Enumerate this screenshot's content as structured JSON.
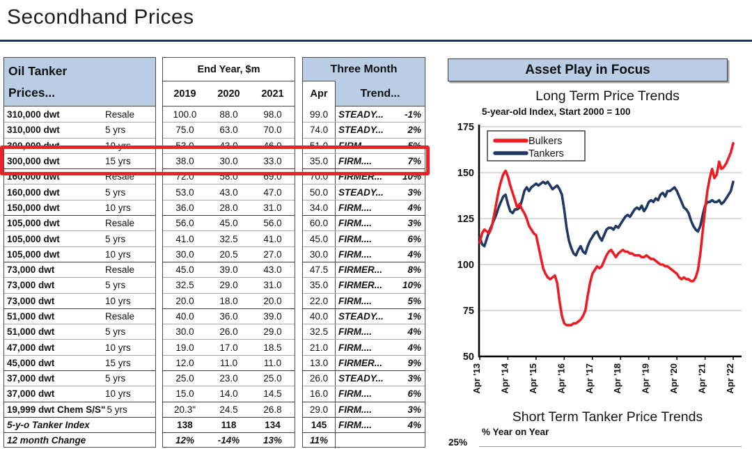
{
  "page": {
    "title": "Secondhand Prices"
  },
  "colors": {
    "header_blue": "#b9cde5",
    "rule_navy": "#17375e",
    "highlight_red": "#ee2128",
    "bulkers_red": "#ec1c24",
    "tankers_navy": "#1f3864"
  },
  "table": {
    "header": {
      "col1_line1": "Oil Tanker",
      "col1_line2": "Prices...",
      "years_title": "End Year, $m",
      "years": [
        "2019",
        "2020",
        "2021"
      ],
      "three_month": "Three Month",
      "apr": "Apr",
      "trend": "Trend..."
    },
    "rows": [
      {
        "label": "310,000 dwt",
        "age": "Resale",
        "y2019": "100.0",
        "y2020": "88.0",
        "y2021": "98.0",
        "apr": "99.0",
        "trend": "STEADY...",
        "pct": "-1%"
      },
      {
        "label": "310,000 dwt",
        "age": "5 yrs",
        "y2019": "75.0",
        "y2020": "63.0",
        "y2021": "70.0",
        "apr": "74.0",
        "trend": "STEADY...",
        "pct": "2%"
      },
      {
        "label": "300,000 dwt",
        "age": "10 yrs",
        "y2019": "53.0",
        "y2020": "43.0",
        "y2021": "46.0",
        "apr": "51.0",
        "trend": "FIRM....",
        "pct": "5%"
      },
      {
        "label": "300,000 dwt",
        "age": "15 yrs",
        "y2019": "38.0",
        "y2020": "30.0",
        "y2021": "33.0",
        "apr": "35.0",
        "trend": "FIRM....",
        "pct": "7%",
        "highlighted": true
      },
      {
        "label": "160,000 dwt",
        "age": "Resale",
        "y2019": "72.0",
        "y2020": "58.0",
        "y2021": "69.0",
        "apr": "70.0",
        "trend": "FIRMER...",
        "pct": "10%",
        "group_start": true
      },
      {
        "label": "160,000 dwt",
        "age": "5 yrs",
        "y2019": "53.0",
        "y2020": "43.0",
        "y2021": "47.0",
        "apr": "50.0",
        "trend": "STEADY...",
        "pct": "3%"
      },
      {
        "label": "150,000 dwt",
        "age": "10 yrs",
        "y2019": "36.0",
        "y2020": "28.0",
        "y2021": "31.0",
        "apr": "34.0",
        "trend": "FIRM....",
        "pct": "4%"
      },
      {
        "label": "105,000 dwt",
        "age": "Resale",
        "y2019": "56.0",
        "y2020": "45.0",
        "y2021": "56.0",
        "apr": "60.0",
        "trend": "FIRM....",
        "pct": "3%",
        "group_start": true
      },
      {
        "label": "105,000 dwt",
        "age": "5 yrs",
        "y2019": "41.0",
        "y2020": "32.5",
        "y2021": "41.0",
        "apr": "45.0",
        "trend": "FIRM....",
        "pct": "6%"
      },
      {
        "label": "105,000 dwt",
        "age": "10 yrs",
        "y2019": "30.0",
        "y2020": "20.5",
        "y2021": "27.0",
        "apr": "30.0",
        "trend": "FIRM....",
        "pct": "4%"
      },
      {
        "label": "73,000 dwt",
        "age": "Resale",
        "y2019": "45.0",
        "y2020": "39.0",
        "y2021": "43.0",
        "apr": "47.5",
        "trend": "FIRMER...",
        "pct": "8%",
        "group_start": true
      },
      {
        "label": "73,000 dwt",
        "age": "5 yrs",
        "y2019": "32.5",
        "y2020": "29.0",
        "y2021": "31.0",
        "apr": "35.0",
        "trend": "FIRMER...",
        "pct": "10%"
      },
      {
        "label": "73,000 dwt",
        "age": "10 yrs",
        "y2019": "20.0",
        "y2020": "18.0",
        "y2021": "20.0",
        "apr": "22.0",
        "trend": "FIRM....",
        "pct": "5%"
      },
      {
        "label": "51,000 dwt",
        "age": "Resale",
        "y2019": "40.0",
        "y2020": "36.0",
        "y2021": "39.0",
        "apr": "40.0",
        "trend": "STEADY...",
        "pct": "1%",
        "group_start": true
      },
      {
        "label": "51,000 dwt",
        "age": "5 yrs",
        "y2019": "30.0",
        "y2020": "26.0",
        "y2021": "29.0",
        "apr": "32.5",
        "trend": "FIRM....",
        "pct": "4%"
      },
      {
        "label": "47,000 dwt",
        "age": "10 yrs",
        "y2019": "19.0",
        "y2020": "17.0",
        "y2021": "18.5",
        "apr": "21.0",
        "trend": "FIRM....",
        "pct": "4%"
      },
      {
        "label": "45,000 dwt",
        "age": "15 yrs",
        "y2019": "12.0",
        "y2020": "11.0",
        "y2021": "11.0",
        "apr": "13.0",
        "trend": "FIRMER...",
        "pct": "9%"
      },
      {
        "label": "37,000 dwt",
        "age": "5 yrs",
        "y2019": "25.0",
        "y2020": "23.0",
        "y2021": "25.0",
        "apr": "26.0",
        "trend": "STEADY...",
        "pct": "3%",
        "group_start": true
      },
      {
        "label": "37,000 dwt",
        "age": "10 yrs",
        "y2019": "15.0",
        "y2020": "14.0",
        "y2021": "14.5",
        "apr": "16.0",
        "trend": "FIRM....",
        "pct": "6%"
      },
      {
        "label": "19,999 dwt Chem S/S\"",
        "age": "5 yrs",
        "y2019": "20.3\"",
        "y2020": "24.5",
        "y2021": "26.8",
        "apr": "29.0",
        "trend": "FIRM....",
        "pct": "3%",
        "group_start": true
      },
      {
        "label": "5-y-o Tanker Index",
        "age": "",
        "y2019": "138",
        "y2020": "118",
        "y2021": "134",
        "apr": "145",
        "trend": "FIRM....",
        "pct": "4%",
        "group_start": true,
        "cls": "idx"
      },
      {
        "label": "12 month Change",
        "age": "",
        "y2019": "12%",
        "y2020": "-14%",
        "y2021": "13%",
        "apr": "11%",
        "trend": "",
        "pct": "",
        "group_start": true,
        "cls": "chg"
      }
    ]
  },
  "asset_panel": {
    "header": "Asset Play in Focus"
  },
  "chart_data": [
    {
      "type": "line",
      "title": "Long Term Price Trends",
      "subtitle": "5-year-old Index, Start 2000 = 100",
      "x_start": "Apr 2013",
      "x_interval": "monthly",
      "x_tick_labels": [
        "Apr '13",
        "Apr '14",
        "Apr '15",
        "Apr '16",
        "Apr '17",
        "Apr '18",
        "Apr '19",
        "Apr '20",
        "Apr '21",
        "Apr '22"
      ],
      "ylim": [
        50,
        175
      ],
      "yticks": [
        50,
        75,
        100,
        125,
        150,
        175
      ],
      "grid": "horizontal",
      "legend_position": "top-left",
      "series": [
        {
          "name": "Bulkers",
          "color": "#ec1c24",
          "values": [
            112,
            117,
            119,
            118,
            117,
            120,
            126,
            133,
            140,
            145,
            149,
            151,
            148,
            143,
            139,
            135,
            131,
            133,
            130,
            128,
            125,
            121,
            119,
            117,
            116,
            110,
            104,
            98,
            95,
            93,
            92,
            93,
            94,
            90,
            80,
            72,
            68,
            67,
            67,
            67,
            68,
            68,
            69,
            70,
            72,
            75,
            83,
            90,
            95,
            97,
            99,
            98,
            99,
            102,
            105,
            107,
            108,
            106,
            104,
            106,
            107,
            108,
            107,
            107,
            106,
            106,
            105,
            105,
            105,
            104,
            104,
            105,
            104,
            103,
            103,
            102,
            101,
            100,
            100,
            99,
            99,
            98,
            97,
            96,
            95,
            93,
            92,
            93,
            92,
            92,
            91,
            91,
            93,
            97,
            106,
            118,
            130,
            140,
            147,
            152,
            147,
            149,
            156,
            152,
            153,
            155,
            158,
            161,
            166
          ]
        },
        {
          "name": "Tankers",
          "color": "#1f3864",
          "values": [
            115,
            111,
            110,
            114,
            118,
            121,
            124,
            127,
            131,
            134,
            137,
            138,
            133,
            129,
            128,
            130,
            130,
            131,
            135,
            140,
            142,
            140,
            142,
            143,
            144,
            143,
            144,
            145,
            144,
            145,
            143,
            141,
            142,
            143,
            141,
            138,
            130,
            120,
            113,
            109,
            106,
            105,
            108,
            110,
            107,
            106,
            110,
            113,
            115,
            117,
            118,
            115,
            113,
            116,
            119,
            120,
            120,
            119,
            121,
            120,
            122,
            124,
            126,
            127,
            126,
            128,
            130,
            131,
            130,
            132,
            129,
            131,
            134,
            135,
            134,
            136,
            135,
            138,
            139,
            137,
            140,
            140,
            141,
            142,
            140,
            137,
            134,
            131,
            130,
            128,
            124,
            121,
            119,
            118,
            121,
            127,
            132,
            134,
            134,
            135,
            134,
            134,
            135,
            133,
            134,
            136,
            138,
            140,
            145
          ]
        }
      ]
    },
    {
      "type": "line",
      "title": "Short Term Tanker Price Trends",
      "ylabel": "% Year on Year",
      "visible_yticks": [
        "25%"
      ]
    }
  ]
}
